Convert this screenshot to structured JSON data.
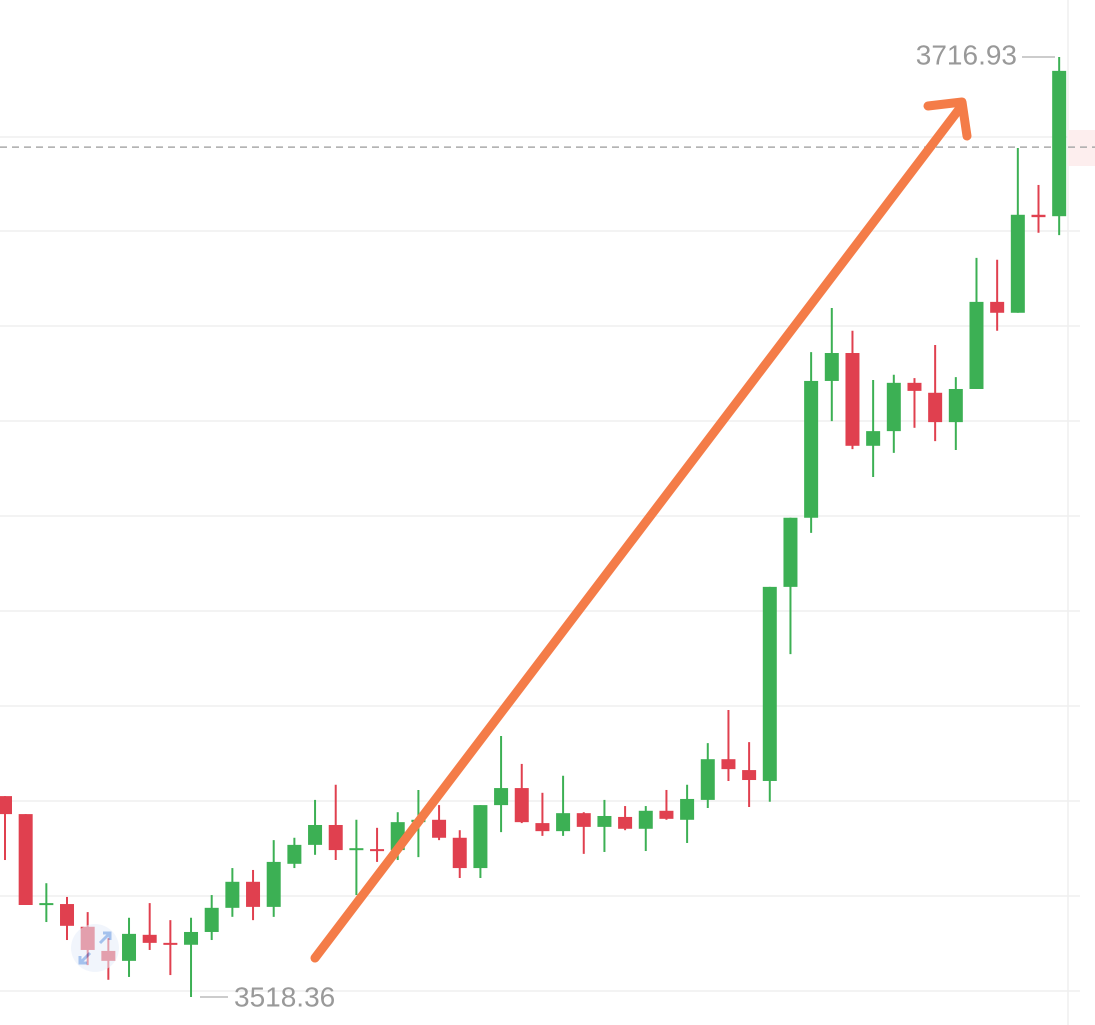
{
  "chart_data": {
    "type": "candlestick",
    "categories": [
      null,
      null,
      null,
      null,
      null,
      null,
      null,
      null,
      null,
      null,
      null,
      null,
      null,
      null,
      null,
      null,
      null,
      null,
      null,
      null,
      null,
      null,
      null,
      null,
      null,
      null,
      null,
      null,
      null,
      null,
      null,
      null,
      null,
      null,
      null,
      null,
      null,
      null,
      null,
      null,
      null,
      null,
      null,
      null,
      null,
      null,
      null,
      null,
      null,
      null,
      null,
      null
    ],
    "series": [
      {
        "up_color": "#3cb054",
        "down_color": "#e0404f",
        "open": [
          3560.8,
          3557.0,
          3537.8,
          3538.0,
          3533.2,
          3528.1,
          3526.0,
          3531.5,
          3529.8,
          3529.4,
          3532.1,
          3537.2,
          3542.7,
          3537.4,
          3546.5,
          3550.5,
          3554.7,
          3549.6,
          3549.6,
          3549.4,
          3555.3,
          3555.8,
          3552.0,
          3545.6,
          3558.9,
          3562.5,
          3555.1,
          3553.4,
          3557.2,
          3554.3,
          3556.4,
          3553.9,
          3557.7,
          3555.8,
          3560.0,
          3568.6,
          3566.3,
          3564.0,
          3605.0,
          3619.6,
          3648.5,
          3654.4,
          3634.8,
          3637.9,
          3648.1,
          3646.0,
          3639.8,
          3646.8,
          3665.2,
          3662.9,
          3683.6,
          3683.3
        ],
        "close": [
          3557.0,
          3537.8,
          3538.2,
          3533.4,
          3528.3,
          3526.0,
          3531.7,
          3529.8,
          3529.6,
          3532.1,
          3537.2,
          3542.7,
          3537.4,
          3546.9,
          3550.5,
          3554.7,
          3549.4,
          3549.8,
          3549.2,
          3555.3,
          3555.8,
          3552.0,
          3545.6,
          3558.9,
          3562.5,
          3555.3,
          3553.4,
          3557.2,
          3554.3,
          3556.6,
          3553.9,
          3557.7,
          3556.0,
          3560.2,
          3568.6,
          3566.5,
          3564.2,
          3605.0,
          3619.6,
          3648.5,
          3654.4,
          3634.8,
          3637.9,
          3648.1,
          3646.4,
          3639.8,
          3646.8,
          3665.2,
          3662.9,
          3683.6,
          3683.1,
          3714.0
        ],
        "high": [
          3560.8,
          3557.0,
          3542.4,
          3539.5,
          3536.3,
          3530.8,
          3535.1,
          3538.2,
          3534.6,
          3535.1,
          3539.9,
          3545.6,
          3545.2,
          3551.5,
          3552.0,
          3560.0,
          3563.2,
          3555.8,
          3554.1,
          3557.4,
          3562.1,
          3558.9,
          3553.6,
          3558.9,
          3573.5,
          3567.6,
          3561.5,
          3565.1,
          3557.4,
          3560.0,
          3558.7,
          3558.7,
          3562.1,
          3563.2,
          3572.0,
          3579.0,
          3572.2,
          3605.0,
          3619.6,
          3654.6,
          3663.9,
          3659.1,
          3648.7,
          3649.8,
          3649.1,
          3656.1,
          3649.3,
          3674.5,
          3674.1,
          3697.7,
          3689.9,
          3716.93
        ],
        "low": [
          3547.3,
          3537.8,
          3534.2,
          3530.4,
          3525.1,
          3522.0,
          3522.6,
          3528.3,
          3523.0,
          3518.36,
          3530.4,
          3535.3,
          3534.6,
          3535.3,
          3545.6,
          3548.4,
          3547.3,
          3539.9,
          3546.9,
          3547.3,
          3547.9,
          3551.5,
          3543.5,
          3543.5,
          3553.2,
          3555.1,
          3552.4,
          3552.4,
          3548.6,
          3549.0,
          3553.6,
          3549.2,
          3555.8,
          3550.9,
          3558.3,
          3564.0,
          3558.5,
          3559.6,
          3590.8,
          3616.4,
          3640.0,
          3634.1,
          3628.2,
          3633.3,
          3638.6,
          3635.8,
          3633.9,
          3646.8,
          3659.1,
          3662.9,
          3679.8,
          3679.3
        ]
      }
    ],
    "reference_line": 3697.9,
    "ylim": [
      3512.45,
      3728.97
    ]
  }
}
